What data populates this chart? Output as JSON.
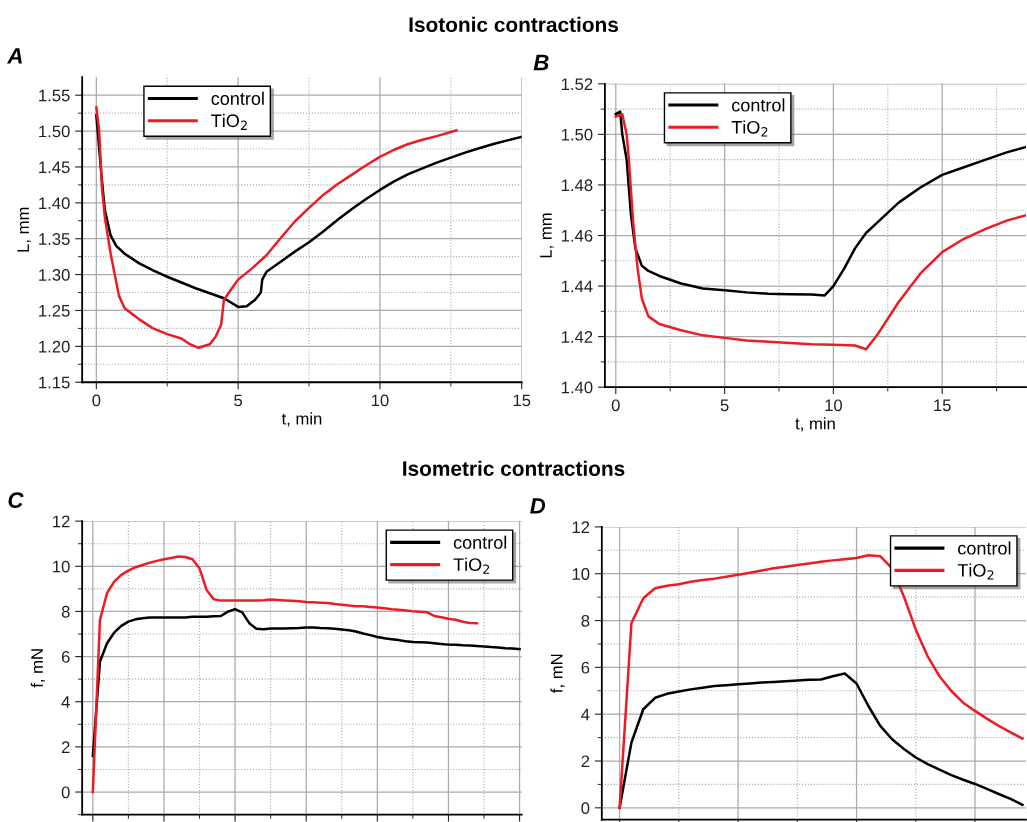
{
  "chart_data": [
    {
      "type": "line",
      "title": "A",
      "annotations": [
        "Isotonic contractions"
      ],
      "xlabel": "t, min",
      "ylabel": "L, mm",
      "xlim": [
        -0.5,
        15
      ],
      "ylim": [
        1.15,
        1.575
      ],
      "xticks": [
        0,
        5,
        10,
        15
      ],
      "yticks": [
        {
          "value": 1.15,
          "label": "1.15"
        },
        {
          "value": 1.2,
          "label": "1.20"
        },
        {
          "value": 1.25,
          "label": "1.25"
        },
        {
          "value": 1.3,
          "label": "1.30"
        },
        {
          "value": 1.35,
          "label": "1.35"
        },
        {
          "value": 1.4,
          "label": "1.40"
        },
        {
          "value": 1.45,
          "label": "1.45"
        },
        {
          "value": 1.5,
          "label": "1.50"
        },
        {
          "value": 1.55,
          "label": "1.55"
        }
      ],
      "grid": true,
      "legend": "top left",
      "series": [
        {
          "name": "control",
          "color": "#000000",
          "x": [
            0,
            0.2,
            0.3,
            0.5,
            0.7,
            1,
            1.5,
            2,
            2.5,
            3,
            3.5,
            4,
            4.5,
            5,
            5.3,
            5.6,
            5.8,
            5.85,
            6,
            6.5,
            7,
            7.5,
            8,
            8.5,
            9,
            9.5,
            10,
            10.5,
            11,
            11.5,
            12,
            12.5,
            13,
            13.5,
            14,
            14.5,
            15
          ],
          "values": [
            1.522,
            1.43,
            1.39,
            1.355,
            1.34,
            1.329,
            1.316,
            1.306,
            1.297,
            1.289,
            1.281,
            1.274,
            1.267,
            1.255,
            1.256,
            1.265,
            1.275,
            1.293,
            1.304,
            1.318,
            1.332,
            1.345,
            1.36,
            1.376,
            1.391,
            1.405,
            1.418,
            1.43,
            1.44,
            1.448,
            1.456,
            1.463,
            1.47,
            1.476,
            1.482,
            1.487,
            1.492
          ]
        },
        {
          "name": "TiO$_{2}$",
          "color": "#ed1c24",
          "x": [
            0,
            0.1,
            0.2,
            0.3,
            0.5,
            0.7,
            0.8,
            1,
            1.5,
            2,
            2.5,
            3,
            3.3,
            3.6,
            4,
            4.2,
            4.4,
            4.5,
            4.8,
            5,
            5.5,
            6,
            6.5,
            7,
            7.5,
            8,
            8.5,
            9,
            9.5,
            10,
            10.5,
            11,
            11.5,
            12,
            12.7
          ],
          "values": [
            1.533,
            1.5,
            1.42,
            1.38,
            1.33,
            1.29,
            1.27,
            1.253,
            1.238,
            1.225,
            1.217,
            1.211,
            1.203,
            1.198,
            1.203,
            1.213,
            1.23,
            1.265,
            1.282,
            1.293,
            1.309,
            1.327,
            1.351,
            1.374,
            1.393,
            1.411,
            1.426,
            1.439,
            1.452,
            1.464,
            1.474,
            1.482,
            1.488,
            1.493,
            1.501
          ]
        }
      ]
    },
    {
      "type": "line",
      "title": "B",
      "xlabel": "t, min",
      "ylabel": "L, mm",
      "xlim": [
        -0.5,
        18.85
      ],
      "ylim": [
        1.4,
        1.52
      ],
      "xticks": [
        0,
        5,
        10,
        15
      ],
      "yticks": [
        {
          "value": 1.4,
          "label": "1.40"
        },
        {
          "value": 1.42,
          "label": "1.42"
        },
        {
          "value": 1.44,
          "label": "1.44"
        },
        {
          "value": 1.46,
          "label": "1.46"
        },
        {
          "value": 1.48,
          "label": "1.48"
        },
        {
          "value": 1.5,
          "label": "1.50"
        },
        {
          "value": 1.52,
          "label": "1.52"
        }
      ],
      "grid": true,
      "legend": "top left",
      "series": [
        {
          "name": "control",
          "color": "#000000",
          "x": [
            0,
            0.2,
            0.3,
            0.5,
            0.7,
            0.9,
            1.2,
            1.5,
            2,
            3,
            4,
            5,
            6,
            7,
            8,
            9,
            9.6,
            10,
            10.5,
            11,
            11.5,
            12,
            13,
            14,
            15,
            16,
            17,
            18,
            18.85
          ],
          "values": [
            1.508,
            1.509,
            1.5,
            1.49,
            1.468,
            1.455,
            1.448,
            1.446,
            1.444,
            1.441,
            1.439,
            1.4383,
            1.4375,
            1.437,
            1.4368,
            1.4367,
            1.4363,
            1.44,
            1.447,
            1.455,
            1.461,
            1.465,
            1.473,
            1.479,
            1.484,
            1.487,
            1.49,
            1.493,
            1.495
          ]
        },
        {
          "name": "TiO$_{2}$",
          "color": "#ed1c24",
          "x": [
            0,
            0.3,
            0.5,
            0.6,
            0.8,
            1,
            1.2,
            1.5,
            2,
            3,
            4,
            5,
            6,
            7,
            8,
            9,
            10,
            11,
            11.5,
            12,
            13,
            14,
            15,
            16,
            17,
            18,
            18.85
          ],
          "values": [
            1.507,
            1.508,
            1.5,
            1.49,
            1.465,
            1.447,
            1.435,
            1.428,
            1.425,
            1.4225,
            1.4205,
            1.4195,
            1.4185,
            1.418,
            1.4175,
            1.417,
            1.4168,
            1.4165,
            1.415,
            1.4205,
            1.4337,
            1.445,
            1.4534,
            1.4587,
            1.4626,
            1.466,
            1.468
          ]
        }
      ]
    },
    {
      "type": "line",
      "title": "C",
      "annotations": [
        "Isometric contractions"
      ],
      "ylabel": "f, mN",
      "categories": [
        null,
        null,
        null,
        null,
        null,
        null,
        null,
        null,
        null,
        null,
        null,
        null,
        null,
        null,
        null,
        null,
        null,
        null,
        null,
        null,
        null,
        null,
        null,
        null,
        null,
        null,
        null,
        null,
        null,
        null,
        null,
        null,
        null,
        null,
        null,
        null,
        null,
        null,
        null,
        null,
        null,
        null,
        null,
        null,
        null,
        null,
        null,
        null,
        null,
        null,
        null,
        null,
        null,
        null,
        null,
        null,
        null,
        null,
        null,
        null,
        null
      ],
      "ylim": [
        -1,
        12
      ],
      "yticks": [
        0,
        2,
        4,
        6,
        8,
        10,
        12
      ],
      "grid": true,
      "legend": "top right",
      "tick_labels": "y",
      "series": [
        {
          "name": "control",
          "color": "#000000",
          "values": [
            1.6,
            5.78,
            6.59,
            7.06,
            7.36,
            7.55,
            7.65,
            7.7,
            7.73,
            7.73,
            7.73,
            7.73,
            7.73,
            7.73,
            7.76,
            7.77,
            7.77,
            7.79,
            7.8,
            7.99,
            8.1,
            7.96,
            7.48,
            7.23,
            7.21,
            7.24,
            7.24,
            7.24,
            7.26,
            7.27,
            7.29,
            7.29,
            7.27,
            7.26,
            7.23,
            7.2,
            7.17,
            7.11,
            7.02,
            6.95,
            6.87,
            6.81,
            6.77,
            6.73,
            6.68,
            6.65,
            6.64,
            6.62,
            6.59,
            6.56,
            6.53,
            6.52,
            6.5,
            6.49,
            6.47,
            6.45,
            6.42,
            6.4,
            6.37,
            6.36,
            6.33
          ]
        },
        {
          "name": "TiO$_{2}$",
          "color": "#ed1c24",
          "values": [
            0,
            7.63,
            8.81,
            9.32,
            9.62,
            9.81,
            9.96,
            10.06,
            10.16,
            10.24,
            10.31,
            10.37,
            10.43,
            10.41,
            10.31,
            9.91,
            8.95,
            8.54,
            8.48,
            8.48,
            8.48,
            8.48,
            8.48,
            8.49,
            8.5,
            8.53,
            8.51,
            8.49,
            8.47,
            8.45,
            8.42,
            8.41,
            8.39,
            8.37,
            8.33,
            8.3,
            8.26,
            8.23,
            8.23,
            8.2,
            8.17,
            8.14,
            8.1,
            8.07,
            8.04,
            8.01,
            7.99,
            7.96,
            7.8,
            7.74,
            7.68,
            7.63,
            7.54,
            7.49,
            7.48,
            null,
            null,
            null,
            null,
            null,
            null
          ]
        }
      ]
    },
    {
      "type": "line",
      "title": "D",
      "ylabel": "f, mN",
      "categories": [
        null,
        null,
        null,
        null,
        null,
        null,
        null,
        null,
        null,
        null,
        null,
        null,
        null,
        null,
        null,
        null,
        null,
        null,
        null,
        null,
        null,
        null,
        null,
        null,
        null,
        null,
        null,
        null,
        null,
        null,
        null,
        null,
        null,
        null,
        null
      ],
      "ylim": [
        -0.5,
        12
      ],
      "yticks": [
        0,
        2,
        4,
        6,
        8,
        10,
        12
      ],
      "grid": true,
      "legend": "top right",
      "tick_labels": "y",
      "series": [
        {
          "name": "control",
          "color": "#000000",
          "values": [
            0,
            2.79,
            4.21,
            4.7,
            4.87,
            4.97,
            5.06,
            5.13,
            5.2,
            5.24,
            5.28,
            5.31,
            5.35,
            5.38,
            5.41,
            5.44,
            5.47,
            5.48,
            5.62,
            5.74,
            5.31,
            4.35,
            3.5,
            2.93,
            2.51,
            2.15,
            1.87,
            1.63,
            1.4,
            1.2,
            1.02,
            0.81,
            0.59,
            0.38,
            0.13
          ]
        },
        {
          "name": "TiO$_{2}$",
          "color": "#ed1c24",
          "values": [
            0,
            7.89,
            8.95,
            9.38,
            9.49,
            9.55,
            9.66,
            9.73,
            9.79,
            9.87,
            9.96,
            10.04,
            10.14,
            10.23,
            10.3,
            10.37,
            10.44,
            10.51,
            10.57,
            10.62,
            10.67,
            10.79,
            10.75,
            10.23,
            9.02,
            7.61,
            6.47,
            5.62,
            4.99,
            4.49,
            4.14,
            3.81,
            3.5,
            3.22,
            2.96
          ]
        }
      ]
    }
  ]
}
